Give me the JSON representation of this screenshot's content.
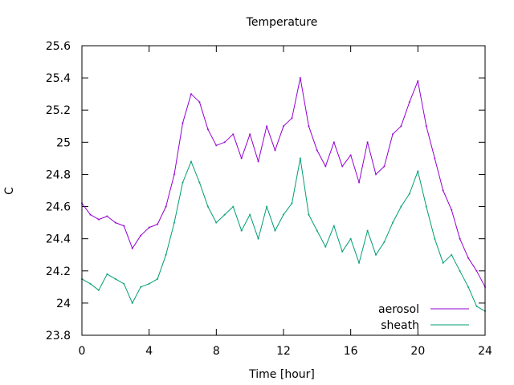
{
  "chart_data": {
    "type": "line",
    "title": "Temperature",
    "xlabel": "Time [hour]",
    "ylabel": "C",
    "xlim": [
      0,
      24
    ],
    "ylim": [
      23.8,
      25.6
    ],
    "xticks": [
      0,
      4,
      8,
      12,
      16,
      20,
      24
    ],
    "yticks": [
      23.8,
      24,
      24.2,
      24.4,
      24.6,
      24.8,
      25,
      25.2,
      25.4,
      25.6
    ],
    "grid": false,
    "legend_position": "bottom-right",
    "series": [
      {
        "name": "aerosol",
        "color": "#9400d3",
        "x": [
          0,
          0.5,
          1,
          1.5,
          2,
          2.5,
          3,
          3.5,
          4,
          4.5,
          5,
          5.5,
          6,
          6.5,
          7,
          7.5,
          8,
          8.5,
          9,
          9.5,
          10,
          10.5,
          11,
          11.5,
          12,
          12.5,
          13,
          13.5,
          14,
          14.5,
          15,
          15.5,
          16,
          16.5,
          17,
          17.5,
          18,
          18.5,
          19,
          19.5,
          20,
          20.5,
          21,
          21.5,
          22,
          22.5,
          23,
          23.5,
          24
        ],
        "y": [
          24.62,
          24.55,
          24.52,
          24.54,
          24.5,
          24.48,
          24.34,
          24.42,
          24.47,
          24.49,
          24.6,
          24.8,
          25.12,
          25.3,
          25.25,
          25.08,
          24.98,
          25.0,
          25.05,
          24.9,
          25.05,
          24.88,
          25.1,
          24.95,
          25.1,
          25.15,
          25.4,
          25.1,
          24.95,
          24.85,
          25.0,
          24.85,
          24.92,
          24.75,
          25.0,
          24.8,
          24.85,
          25.05,
          25.1,
          25.25,
          25.38,
          25.1,
          24.9,
          24.7,
          24.58,
          24.4,
          24.28,
          24.2,
          24.1
        ]
      },
      {
        "name": "sheath",
        "color": "#009e73",
        "x": [
          0,
          0.5,
          1,
          1.5,
          2,
          2.5,
          3,
          3.5,
          4,
          4.5,
          5,
          5.5,
          6,
          6.5,
          7,
          7.5,
          8,
          8.5,
          9,
          9.5,
          10,
          10.5,
          11,
          11.5,
          12,
          12.5,
          13,
          13.5,
          14,
          14.5,
          15,
          15.5,
          16,
          16.5,
          17,
          17.5,
          18,
          18.5,
          19,
          19.5,
          20,
          20.5,
          21,
          21.5,
          22,
          22.5,
          23,
          23.5,
          24
        ],
        "y": [
          24.15,
          24.12,
          24.08,
          24.18,
          24.15,
          24.12,
          24.0,
          24.1,
          24.12,
          24.15,
          24.3,
          24.5,
          24.75,
          24.88,
          24.75,
          24.6,
          24.5,
          24.55,
          24.6,
          24.45,
          24.55,
          24.4,
          24.6,
          24.45,
          24.55,
          24.62,
          24.9,
          24.55,
          24.45,
          24.35,
          24.48,
          24.32,
          24.4,
          24.25,
          24.45,
          24.3,
          24.38,
          24.5,
          24.6,
          24.68,
          24.82,
          24.6,
          24.4,
          24.25,
          24.3,
          24.2,
          24.1,
          23.98,
          23.95
        ]
      }
    ]
  }
}
